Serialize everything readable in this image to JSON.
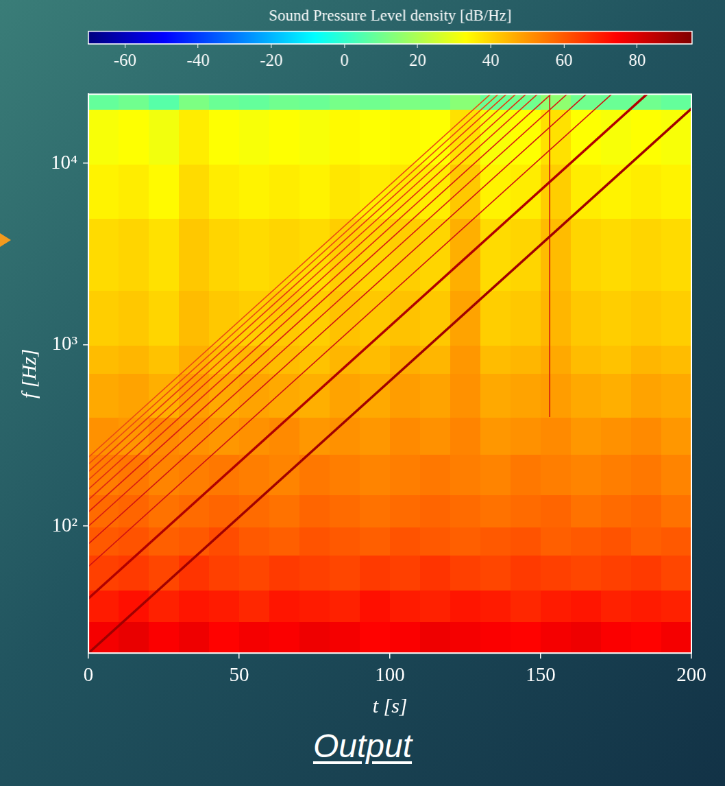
{
  "chart_data": {
    "type": "heatmap",
    "colorbar_label": "Sound Pressure Level density [dB/Hz]",
    "colorbar_lim": [
      -70,
      95
    ],
    "colorbar_ticks": [
      -60,
      -40,
      -20,
      0,
      20,
      40,
      60,
      80
    ],
    "x_label": "t [s]",
    "y_label": "f [Hz]",
    "caption": "Output",
    "xlim": [
      0,
      200
    ],
    "xticks": [
      0,
      50,
      100,
      150,
      200
    ],
    "ylim": [
      20,
      24000
    ],
    "yticks": [
      {
        "value": 100,
        "label": "10²"
      },
      {
        "value": 1000,
        "label": "10³"
      },
      {
        "value": 10000,
        "label": "10⁴"
      }
    ],
    "log": "y",
    "grid": false,
    "t_edges": [
      0,
      10,
      20,
      30,
      40,
      50,
      60,
      70,
      80,
      90,
      100,
      110,
      120,
      130,
      140,
      150,
      160,
      170,
      180,
      190,
      200
    ],
    "f_edges": [
      20,
      30,
      45,
      70,
      100,
      150,
      250,
      400,
      700,
      1000,
      2000,
      5000,
      10000,
      20000,
      24000
    ],
    "cells": [
      [
        76,
        78,
        75,
        77,
        74,
        76,
        75,
        77,
        76,
        74,
        75,
        77,
        76,
        75,
        74,
        76,
        77,
        75,
        74,
        76
      ],
      [
        70,
        72,
        69,
        71,
        70,
        68,
        71,
        70,
        69,
        72,
        70,
        69,
        71,
        70,
        68,
        70,
        71,
        69,
        70,
        69
      ],
      [
        64,
        65,
        63,
        66,
        64,
        63,
        65,
        64,
        63,
        65,
        64,
        66,
        64,
        63,
        65,
        64,
        63,
        64,
        65,
        63
      ],
      [
        60,
        61,
        59,
        60,
        62,
        60,
        59,
        61,
        60,
        59,
        61,
        60,
        59,
        60,
        61,
        59,
        60,
        61,
        59,
        60
      ],
      [
        57,
        58,
        56,
        57,
        58,
        57,
        56,
        58,
        57,
        56,
        57,
        58,
        57,
        56,
        57,
        58,
        56,
        57,
        58,
        56
      ],
      [
        54,
        55,
        53,
        54,
        55,
        54,
        53,
        55,
        54,
        53,
        54,
        55,
        54,
        53,
        55,
        54,
        53,
        54,
        55,
        53
      ],
      [
        51,
        50,
        52,
        51,
        50,
        51,
        52,
        50,
        51,
        50,
        52,
        51,
        53,
        50,
        51,
        52,
        50,
        51,
        52,
        50
      ],
      [
        47,
        48,
        46,
        49,
        47,
        48,
        47,
        46,
        48,
        47,
        49,
        48,
        51,
        47,
        48,
        49,
        47,
        46,
        48,
        47
      ],
      [
        44,
        45,
        43,
        46,
        44,
        45,
        44,
        43,
        45,
        44,
        46,
        45,
        50,
        44,
        45,
        47,
        44,
        43,
        45,
        44
      ],
      [
        41,
        42,
        40,
        44,
        42,
        41,
        42,
        41,
        43,
        42,
        43,
        42,
        48,
        41,
        42,
        45,
        42,
        41,
        42,
        41
      ],
      [
        39,
        40,
        38,
        42,
        40,
        39,
        40,
        39,
        41,
        40,
        41,
        40,
        46,
        39,
        40,
        44,
        40,
        39,
        40,
        39
      ],
      [
        35,
        36,
        34,
        39,
        36,
        35,
        36,
        35,
        37,
        36,
        37,
        36,
        42,
        35,
        36,
        41,
        36,
        35,
        36,
        35
      ],
      [
        32,
        33,
        31,
        36,
        33,
        32,
        33,
        32,
        34,
        33,
        34,
        33,
        38,
        32,
        33,
        38,
        33,
        32,
        33,
        32
      ],
      [
        8,
        10,
        6,
        12,
        9,
        8,
        10,
        9,
        11,
        10,
        12,
        11,
        14,
        9,
        10,
        15,
        10,
        9,
        10,
        8
      ]
    ],
    "series": [
      {
        "x": [
          0,
          200
        ],
        "values": [
          20,
          20000
        ],
        "color": "#a00000",
        "line_style": "solid"
      },
      {
        "x": [
          0,
          185.2
        ],
        "values": [
          40,
          24000
        ],
        "color": "#b00000",
        "line_style": "solid"
      },
      {
        "x": [
          0,
          173.5
        ],
        "values": [
          60,
          24000
        ],
        "color": "#d01010",
        "line_style": "solid"
      },
      {
        "x": [
          0,
          165.1
        ],
        "values": [
          80,
          24000
        ],
        "color": "#d01010",
        "line_style": "solid"
      },
      {
        "x": [
          0,
          158.7
        ],
        "values": [
          100,
          24000
        ],
        "color": "#d81a10",
        "line_style": "solid"
      },
      {
        "x": [
          0,
          153.4
        ],
        "values": [
          120,
          24000
        ],
        "color": "#d81a10",
        "line_style": "solid"
      },
      {
        "x": [
          0,
          148.9
        ],
        "values": [
          140,
          24000
        ],
        "color": "#e02a10",
        "line_style": "solid"
      },
      {
        "x": [
          0,
          145.1
        ],
        "values": [
          160,
          24000
        ],
        "color": "#e02a10",
        "line_style": "solid"
      },
      {
        "x": [
          0,
          141.7
        ],
        "values": [
          180,
          24000
        ],
        "color": "#e63a10",
        "line_style": "solid"
      },
      {
        "x": [
          0,
          138.6
        ],
        "values": [
          200,
          24000
        ],
        "color": "#e63a10",
        "line_style": "solid"
      },
      {
        "x": [
          0,
          135.9
        ],
        "values": [
          220,
          24000
        ],
        "color": "#ea4a12",
        "line_style": "solid"
      },
      {
        "x": [
          0,
          133.3
        ],
        "values": [
          240,
          24000
        ],
        "color": "#ea4a12",
        "line_style": "solid"
      },
      {
        "x": [
          153,
          153
        ],
        "values": [
          400,
          24000
        ],
        "color": "#d01010",
        "line_style": "solid"
      }
    ]
  }
}
